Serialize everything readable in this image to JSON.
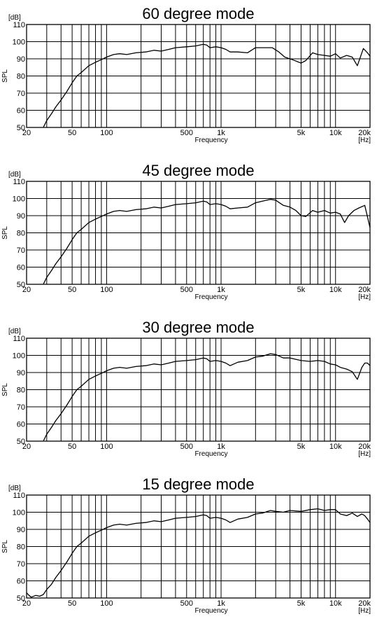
{
  "chart_data": [
    {
      "type": "line",
      "title": "60 degree mode",
      "y_unit": "[dB]",
      "x_unit": "[Hz]",
      "ylabel": "SPL",
      "xlabel": "Frequency",
      "ylim": [
        50,
        110
      ],
      "xlim": [
        20,
        20000
      ],
      "x_scale": "log",
      "grid": true,
      "xticks": [
        {
          "v": 20,
          "t": "20"
        },
        {
          "v": 50,
          "t": "50"
        },
        {
          "v": 100,
          "t": "100"
        },
        {
          "v": 500,
          "t": "500"
        },
        {
          "v": 1000,
          "t": "1k"
        },
        {
          "v": 5000,
          "t": "5k"
        },
        {
          "v": 10000,
          "t": "10k"
        },
        {
          "v": 20000,
          "t": "20k"
        }
      ],
      "yticks": [
        50,
        60,
        70,
        80,
        90,
        100,
        110
      ],
      "x": [
        28,
        30,
        33,
        36,
        40,
        45,
        50,
        55,
        60,
        70,
        80,
        90,
        100,
        115,
        130,
        150,
        180,
        220,
        260,
        300,
        350,
        400,
        500,
        600,
        700,
        750,
        800,
        900,
        1000,
        1100,
        1200,
        1400,
        1700,
        2000,
        2200,
        2500,
        2800,
        3200,
        3600,
        4200,
        5000,
        5500,
        6300,
        7000,
        8000,
        9000,
        10000,
        11000,
        12500,
        14000,
        15500,
        17500,
        19000,
        20000
      ],
      "values": [
        50,
        54,
        58,
        62,
        66,
        71,
        76,
        80,
        82,
        86,
        88,
        89.5,
        91,
        92.5,
        93,
        92.5,
        93.5,
        94,
        95,
        94.5,
        95.5,
        96.5,
        97,
        97.5,
        98.5,
        98,
        96.5,
        97,
        96.5,
        95.5,
        94,
        94,
        93.5,
        96.5,
        96.5,
        96.5,
        96.5,
        94,
        91,
        89.5,
        87.5,
        89,
        93.5,
        92.5,
        92,
        91.5,
        93,
        90.5,
        92,
        91,
        86,
        96,
        93.5,
        91.5
      ]
    },
    {
      "type": "line",
      "title": "45 degree mode",
      "y_unit": "[dB]",
      "x_unit": "[Hz]",
      "ylabel": "SPL",
      "xlabel": "Frequency",
      "ylim": [
        50,
        110
      ],
      "xlim": [
        20,
        20000
      ],
      "x_scale": "log",
      "grid": true,
      "xticks": [
        {
          "v": 20,
          "t": "20"
        },
        {
          "v": 50,
          "t": "50"
        },
        {
          "v": 100,
          "t": "100"
        },
        {
          "v": 500,
          "t": "500"
        },
        {
          "v": 1000,
          "t": "1k"
        },
        {
          "v": 5000,
          "t": "5k"
        },
        {
          "v": 10000,
          "t": "10k"
        },
        {
          "v": 20000,
          "t": "20k"
        }
      ],
      "yticks": [
        50,
        60,
        70,
        80,
        90,
        100,
        110
      ],
      "x": [
        28,
        30,
        33,
        36,
        40,
        45,
        50,
        55,
        60,
        70,
        80,
        90,
        100,
        115,
        130,
        150,
        180,
        220,
        260,
        300,
        350,
        400,
        500,
        600,
        700,
        750,
        800,
        900,
        1000,
        1100,
        1200,
        1400,
        1700,
        2000,
        2300,
        2700,
        3000,
        3500,
        4000,
        4500,
        5000,
        5500,
        6300,
        7000,
        8000,
        9000,
        10000,
        11000,
        12000,
        13000,
        14500,
        16000,
        18000,
        20000
      ],
      "values": [
        50,
        54,
        58,
        62,
        66,
        71,
        76,
        80,
        82,
        86,
        88,
        89.5,
        91,
        92.5,
        93,
        92.5,
        93.5,
        94,
        95,
        94.5,
        95.5,
        96.5,
        97,
        97.5,
        98.5,
        98,
        96.5,
        97,
        96.5,
        95.5,
        94,
        94.5,
        95,
        97.5,
        98.5,
        99.5,
        99,
        96,
        95,
        93,
        90,
        89.5,
        93,
        92,
        93,
        91.5,
        92,
        91,
        86,
        90,
        93,
        94.5,
        96,
        83
      ]
    },
    {
      "type": "line",
      "title": "30 degree mode",
      "y_unit": "[dB]",
      "x_unit": "[Hz]",
      "ylabel": "SPL",
      "xlabel": "Frequency",
      "ylim": [
        50,
        110
      ],
      "xlim": [
        20,
        20000
      ],
      "x_scale": "log",
      "grid": true,
      "xticks": [
        {
          "v": 20,
          "t": "20"
        },
        {
          "v": 50,
          "t": "50"
        },
        {
          "v": 100,
          "t": "100"
        },
        {
          "v": 500,
          "t": "500"
        },
        {
          "v": 1000,
          "t": "1k"
        },
        {
          "v": 5000,
          "t": "5k"
        },
        {
          "v": 10000,
          "t": "10k"
        },
        {
          "v": 20000,
          "t": "20k"
        }
      ],
      "yticks": [
        50,
        60,
        70,
        80,
        90,
        100,
        110
      ],
      "x": [
        28,
        30,
        33,
        36,
        40,
        45,
        50,
        55,
        60,
        70,
        80,
        90,
        100,
        115,
        130,
        150,
        180,
        220,
        260,
        300,
        350,
        400,
        500,
        600,
        700,
        750,
        800,
        900,
        1000,
        1100,
        1200,
        1400,
        1700,
        2000,
        2300,
        2700,
        3000,
        3500,
        4000,
        5000,
        6000,
        7000,
        8000,
        9000,
        10000,
        11000,
        12500,
        14000,
        15500,
        17000,
        18000,
        19000,
        20000
      ],
      "values": [
        50,
        54,
        58,
        62,
        66,
        71,
        76,
        80,
        82,
        86,
        88,
        89.5,
        91,
        92.5,
        93,
        92.5,
        93.5,
        94,
        95,
        94.5,
        95.5,
        96.5,
        97,
        97.5,
        98.5,
        98,
        96.5,
        97,
        96.5,
        95.5,
        94,
        96,
        97,
        99,
        99.5,
        101,
        100.5,
        98.5,
        98.5,
        97,
        96.5,
        97,
        96.5,
        95,
        94.5,
        93,
        92,
        90.5,
        86,
        93,
        95.5,
        95.5,
        94
      ]
    },
    {
      "type": "line",
      "title": "15 degree mode",
      "y_unit": "[dB]",
      "x_unit": "[Hz]",
      "ylabel": "SPL",
      "xlabel": "Frequency",
      "ylim": [
        50,
        110
      ],
      "xlim": [
        20,
        20000
      ],
      "x_scale": "log",
      "grid": true,
      "xticks": [
        {
          "v": 20,
          "t": "20"
        },
        {
          "v": 50,
          "t": "50"
        },
        {
          "v": 100,
          "t": "100"
        },
        {
          "v": 500,
          "t": "500"
        },
        {
          "v": 1000,
          "t": "1k"
        },
        {
          "v": 5000,
          "t": "5k"
        },
        {
          "v": 10000,
          "t": "10k"
        },
        {
          "v": 20000,
          "t": "20k"
        }
      ],
      "yticks": [
        50,
        60,
        70,
        80,
        90,
        100,
        110
      ],
      "x": [
        20,
        21,
        22,
        24,
        26,
        28,
        30,
        33,
        36,
        40,
        45,
        50,
        55,
        60,
        70,
        80,
        90,
        100,
        115,
        130,
        150,
        180,
        220,
        260,
        300,
        350,
        400,
        500,
        600,
        700,
        750,
        800,
        900,
        1000,
        1100,
        1200,
        1400,
        1700,
        2000,
        2300,
        2700,
        3000,
        3500,
        4000,
        5000,
        6000,
        7000,
        8000,
        9000,
        10000,
        11000,
        12500,
        14000,
        15500,
        17000,
        18000,
        19000,
        20000
      ],
      "values": [
        53,
        51.5,
        50.5,
        51.5,
        51,
        52,
        55,
        58,
        62,
        66,
        71,
        76,
        80,
        82,
        86,
        88,
        89.5,
        91,
        92.5,
        93,
        92.5,
        93.5,
        94,
        95,
        94.5,
        95.5,
        96.5,
        97,
        97.5,
        98.5,
        98,
        96.5,
        97,
        96.5,
        95.5,
        94,
        96,
        97,
        99,
        99.5,
        101,
        100.5,
        100,
        101,
        100.5,
        101.5,
        102,
        101,
        101.5,
        101.5,
        99,
        98,
        99.5,
        97.5,
        99,
        98,
        96,
        94
      ]
    }
  ]
}
